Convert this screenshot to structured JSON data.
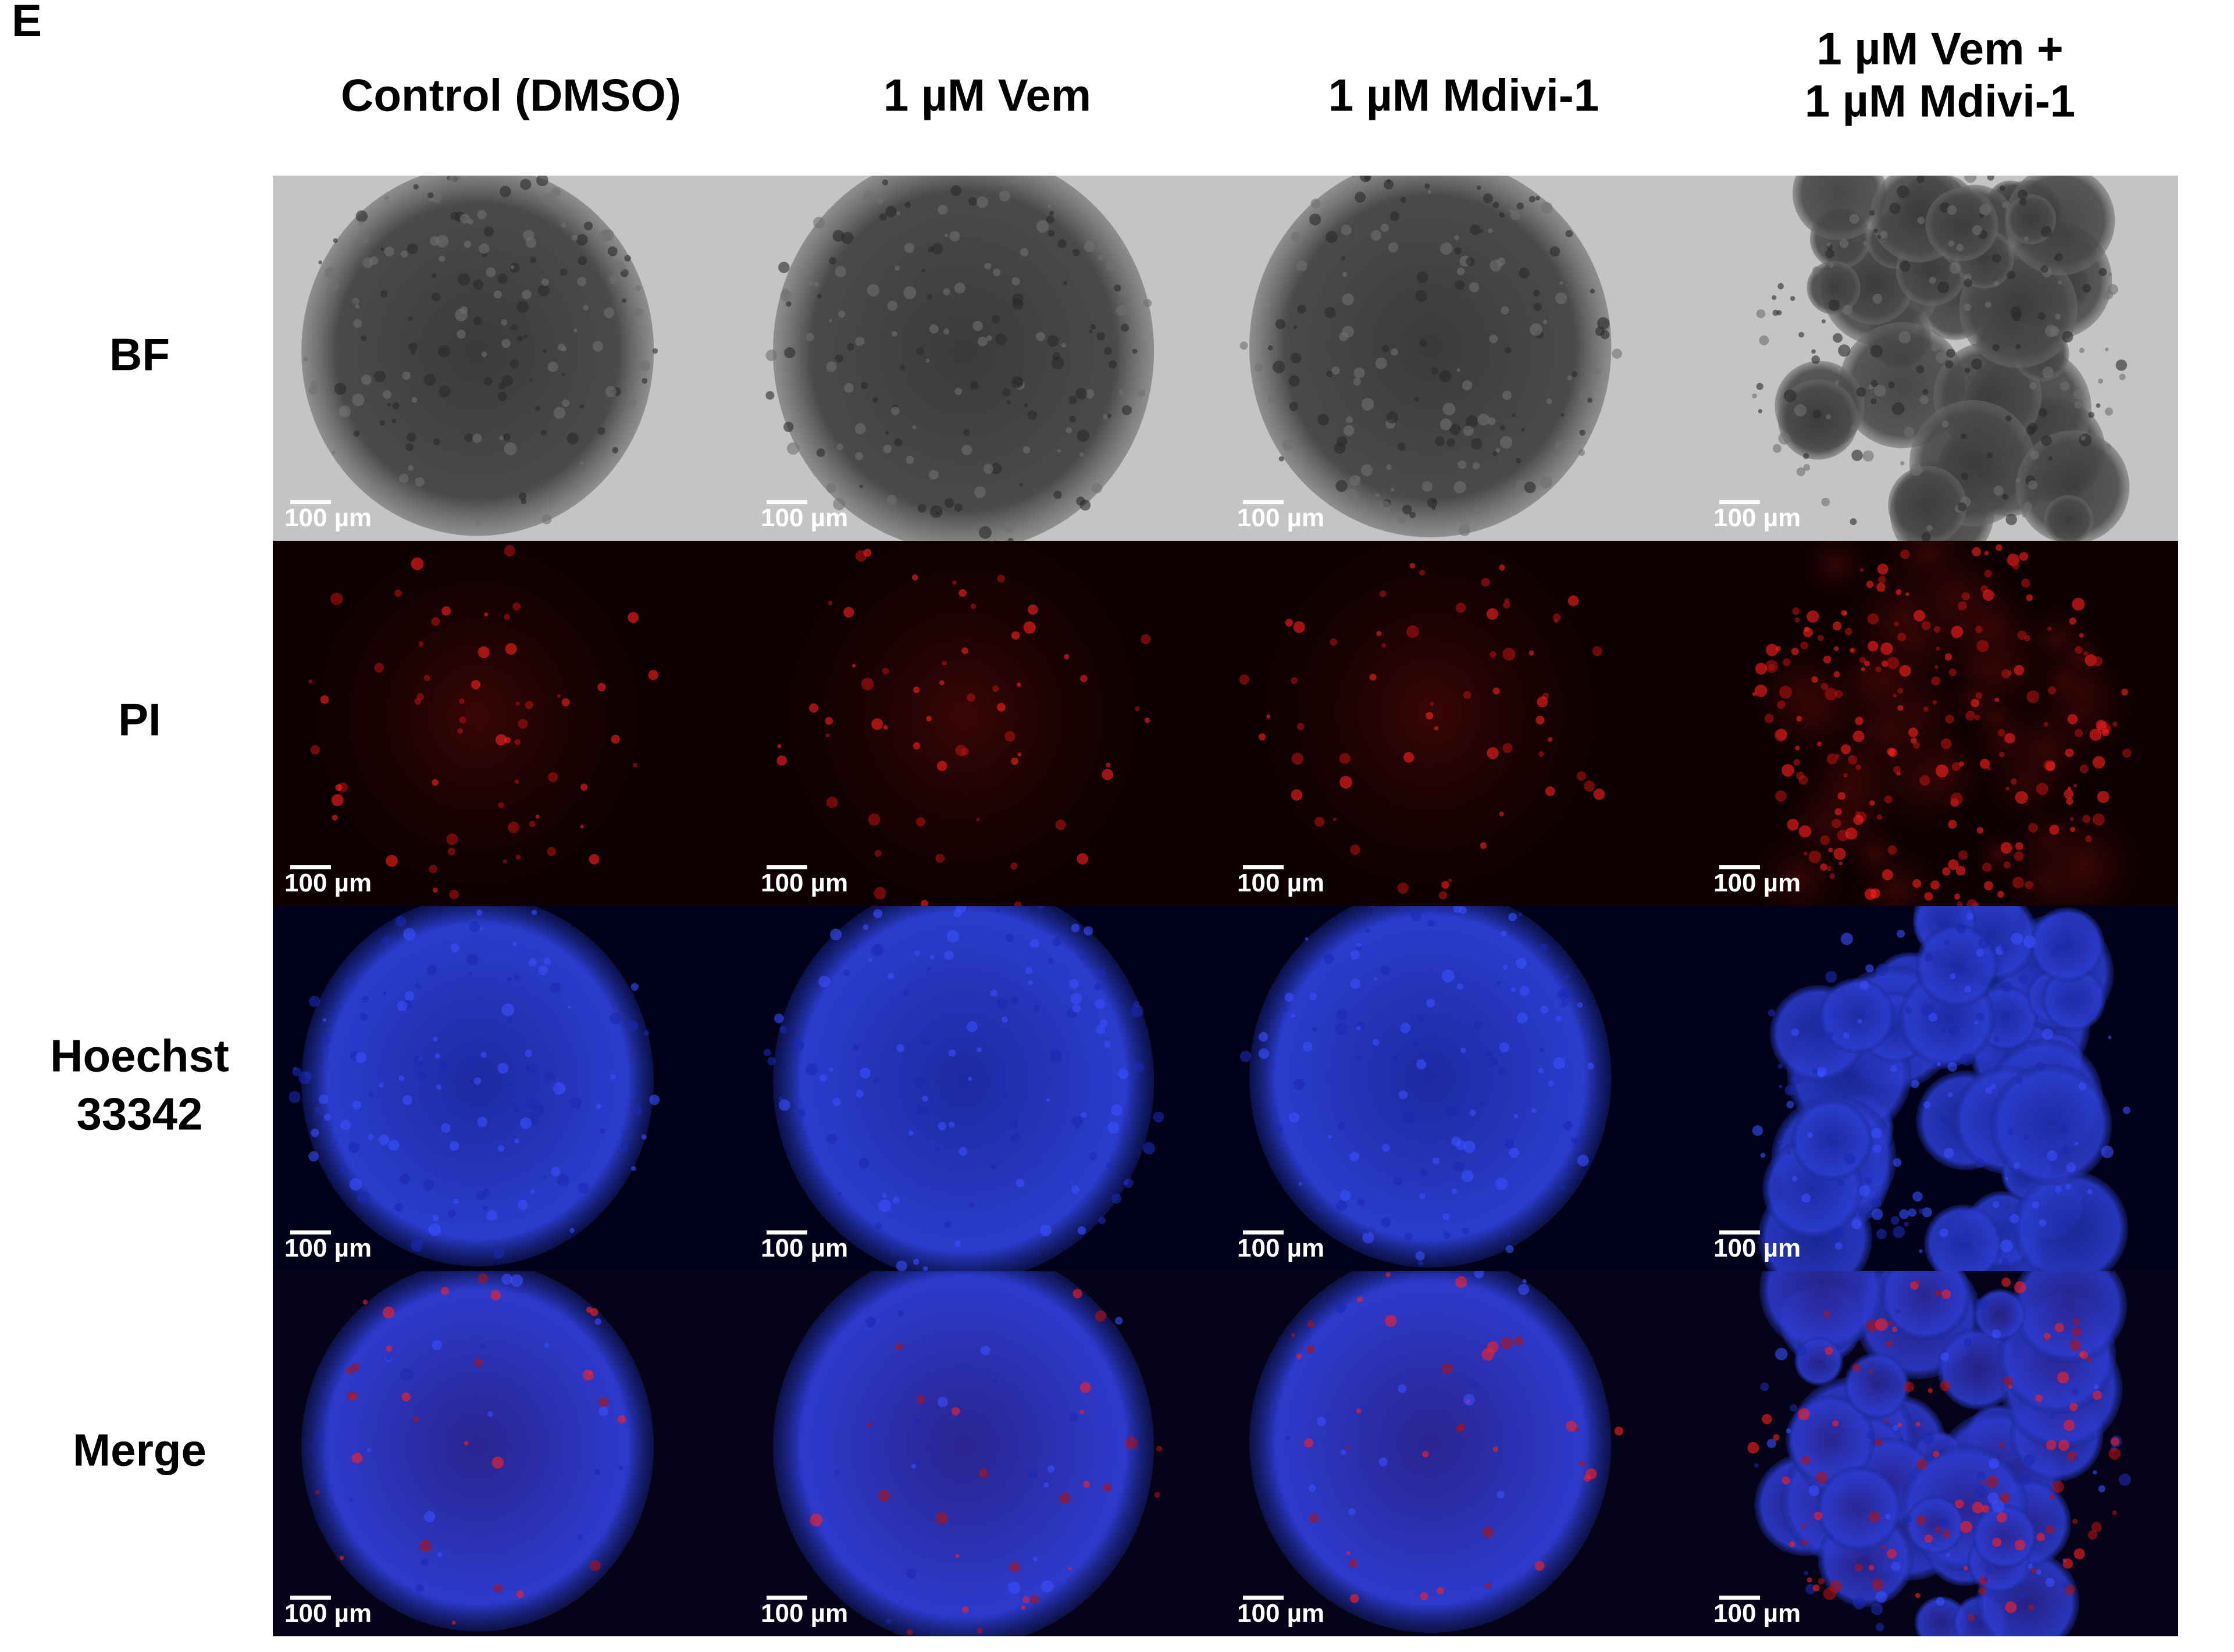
{
  "panel_label": "E",
  "columns": [
    [
      "Control (DMSO)"
    ],
    [
      "1 µM Vem"
    ],
    [
      "1 µM Mdivi-1"
    ],
    [
      "1 µM Vem +",
      "1 µM Mdivi-1"
    ]
  ],
  "rows": [
    {
      "label": [
        "BF"
      ],
      "cells": [
        {
          "scale_bar": "100 µm"
        },
        {
          "scale_bar": "100 µm"
        },
        {
          "scale_bar": "100 µm"
        },
        {
          "scale_bar": "100 µm"
        }
      ]
    },
    {
      "label": [
        "PI"
      ],
      "cells": [
        {
          "scale_bar": "100 µm"
        },
        {
          "scale_bar": "100 µm"
        },
        {
          "scale_bar": "100 µm"
        },
        {
          "scale_bar": "100 µm"
        }
      ]
    },
    {
      "label": [
        "Hoechst",
        "33342"
      ],
      "cells": [
        {
          "scale_bar": "100 µm"
        },
        {
          "scale_bar": "100 µm"
        },
        {
          "scale_bar": "100 µm"
        },
        {
          "scale_bar": "100 µm"
        }
      ]
    },
    {
      "label": [
        "Merge"
      ],
      "cells": [
        {
          "scale_bar": "100 µm"
        },
        {
          "scale_bar": "100 µm"
        },
        {
          "scale_bar": "100 µm"
        },
        {
          "scale_bar": "100 µm"
        }
      ]
    }
  ]
}
